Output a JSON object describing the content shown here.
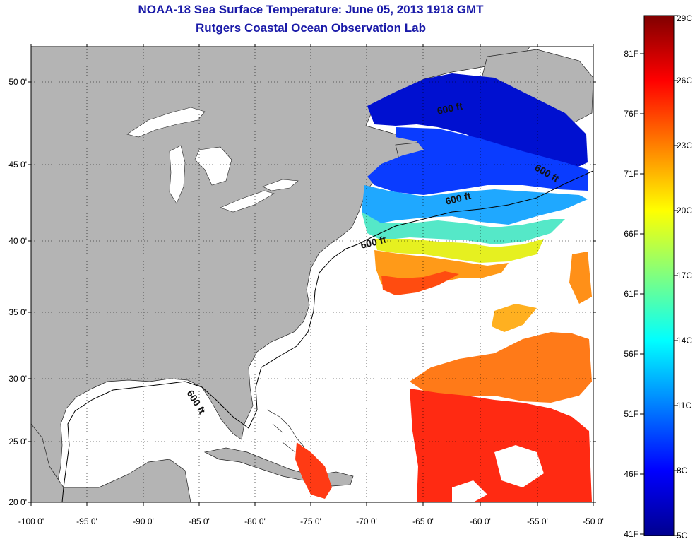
{
  "title": "NOAA-18 Sea Surface Temperature:  June 05, 2013 1918 GMT",
  "subtitle": "Rutgers Coastal Ocean Observation Lab",
  "lat_labels": [
    "50 0'",
    "45 0'",
    "40 0'",
    "35 0'",
    "30 0'",
    "25 0'",
    "20 0'"
  ],
  "lon_labels": [
    "-100 0'",
    "-95 0'",
    "-90 0'",
    "-85 0'",
    "-80 0'",
    "-75 0'",
    "-70 0'",
    "-65 0'",
    "-60 0'",
    "-55 0'",
    "-50 0'"
  ],
  "contour_label": "600 ft",
  "colorbar": {
    "celsius": [
      "29C",
      "26C",
      "23C",
      "20C",
      "17C",
      "14C",
      "11C",
      "8C",
      "5C"
    ],
    "fahrenheit": [
      "81F",
      "76F",
      "71F",
      "66F",
      "61F",
      "56F",
      "51F",
      "46F",
      "41F"
    ],
    "min_c": 5,
    "max_c": 29
  },
  "colors": {
    "land": "#b4b4b4",
    "water": "#ffffff",
    "title": "#1a1aa8"
  }
}
